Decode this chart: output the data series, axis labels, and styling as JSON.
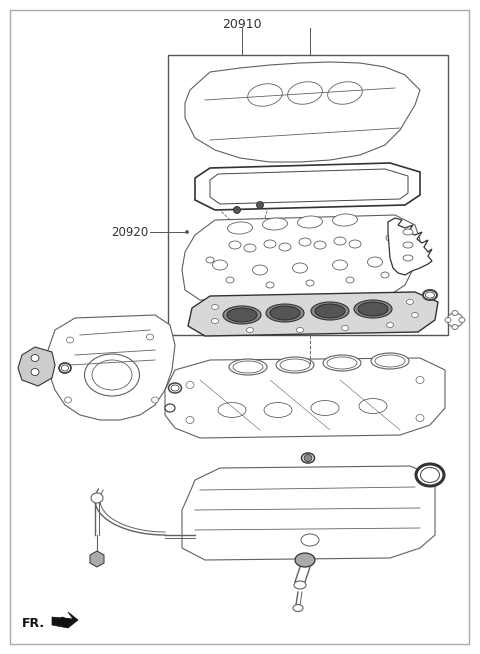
{
  "title": "20910",
  "label_20920": "20920",
  "label_fr": "FR.",
  "bg_color": "#ffffff",
  "line_color": "#404040",
  "thin_lc": "#606060",
  "border_color": "#999999",
  "fig_width": 4.8,
  "fig_height": 6.54,
  "dpi": 100
}
